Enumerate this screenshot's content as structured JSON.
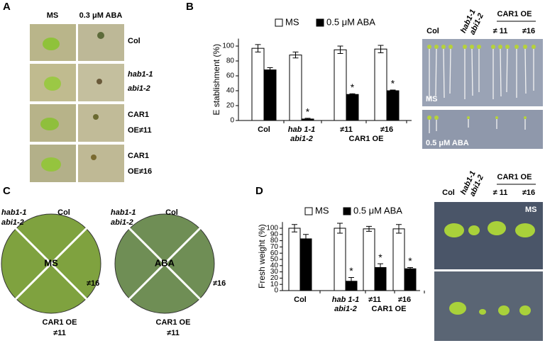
{
  "panel_letters": [
    "A",
    "B",
    "C",
    "D"
  ],
  "panel_a": {
    "columns": [
      "MS",
      "0.3 μM ABA"
    ],
    "rows": [
      [
        "Col"
      ],
      [
        "hab1-1",
        "abi1-2"
      ],
      [
        "CAR1",
        "OE≠11"
      ],
      [
        "CAR1",
        "OE≠16"
      ]
    ]
  },
  "panel_b_photo": {
    "genotypes": [
      "Col",
      "hab1-1",
      "abi1-2"
    ],
    "group": "CAR1 OE",
    "lines": [
      "≠ 11",
      "≠16"
    ],
    "conditions": [
      "MS",
      "0.5 μM ABA"
    ]
  },
  "panel_c": {
    "labels": {
      "col": "Col",
      "hab": [
        "hab1-1",
        "abi1-2"
      ],
      "line16": "≠16",
      "car1": [
        "CAR1 OE",
        "≠11"
      ]
    },
    "centers": [
      "MS",
      "ABA"
    ]
  },
  "panel_d_photo": {
    "genotypes": [
      "Col",
      "hab1-1",
      "abi1-2"
    ],
    "group": "CAR1 OE",
    "lines": [
      "≠ 11",
      "≠16"
    ],
    "condition": "MS"
  },
  "chart_data": [
    {
      "type": "bar",
      "ylabel": "E stablishment (%)",
      "legend": true,
      "categories": [
        "Col",
        [
          "hab 1-1",
          "abi1-2"
        ],
        "≠11",
        "≠16"
      ],
      "group_label": "CAR1 OE",
      "ylim": [
        0,
        110
      ],
      "yticks": [
        0,
        20,
        40,
        60,
        80,
        100
      ],
      "series": [
        {
          "name": "MS",
          "color": "#ffffff",
          "values": [
            97,
            88,
            95,
            96
          ],
          "errors": [
            5,
            4,
            5,
            5
          ]
        },
        {
          "name": "0.5 μM  ABA",
          "color": "#000000",
          "values": [
            68,
            2,
            35,
            40
          ],
          "errors": [
            3,
            1,
            1,
            1
          ],
          "significance": [
            null,
            "*",
            "*",
            "*"
          ]
        }
      ]
    },
    {
      "type": "bar",
      "ylabel": "Fresh  weight (%)",
      "legend": true,
      "categories": [
        "Col",
        [
          "hab 1-1",
          "abi1-2"
        ],
        "≠11",
        "≠16"
      ],
      "group_label": "CAR1 OE",
      "ylim": [
        0,
        110
      ],
      "yticks": [
        0,
        10,
        20,
        30,
        40,
        50,
        60,
        70,
        80,
        90,
        100
      ],
      "series": [
        {
          "name": "MS",
          "color": "#ffffff",
          "values": [
            100,
            100,
            99,
            99
          ],
          "errors": [
            6,
            8,
            4,
            7
          ]
        },
        {
          "name": "0.5 μM  ABA",
          "color": "#000000",
          "values": [
            83,
            15,
            37,
            35
          ],
          "errors": [
            7,
            6,
            6,
            2
          ],
          "significance": [
            null,
            "*",
            "*",
            "*"
          ]
        }
      ]
    }
  ]
}
